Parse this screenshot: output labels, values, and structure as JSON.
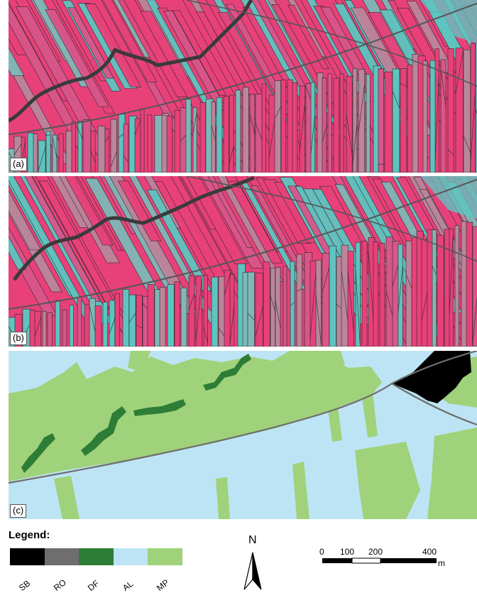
{
  "panels": [
    {
      "id": "a",
      "label": "(a)"
    },
    {
      "id": "b",
      "label": "(b)"
    },
    {
      "id": "c",
      "label": "(c)"
    }
  ],
  "legend": {
    "title": "Legend:",
    "items": [
      {
        "code": "SB",
        "color": "#000000"
      },
      {
        "code": "RO",
        "color": "#6e6e6e"
      },
      {
        "code": "DF",
        "color": "#2e7d36"
      },
      {
        "code": "AL",
        "color": "#bde4f4"
      },
      {
        "code": "MP",
        "color": "#9fd27a"
      }
    ]
  },
  "north_arrow": {
    "letter": "N"
  },
  "scale_bar": {
    "ticks": [
      "0",
      "100",
      "200",
      "400"
    ],
    "unit": "m"
  },
  "colors": {
    "imagery_pink": "#e8417a",
    "imagery_cyan": "#5fc4c0",
    "imagery_mauve": "#b9869c",
    "segment_outline": "#2a2a2a",
    "river": "#3a3a3a",
    "road": "#6e6e6e",
    "class_sb": "#000000",
    "class_ro": "#6e6e6e",
    "class_df": "#2e7d36",
    "class_al": "#bde4f4",
    "class_mp": "#9fd27a"
  }
}
